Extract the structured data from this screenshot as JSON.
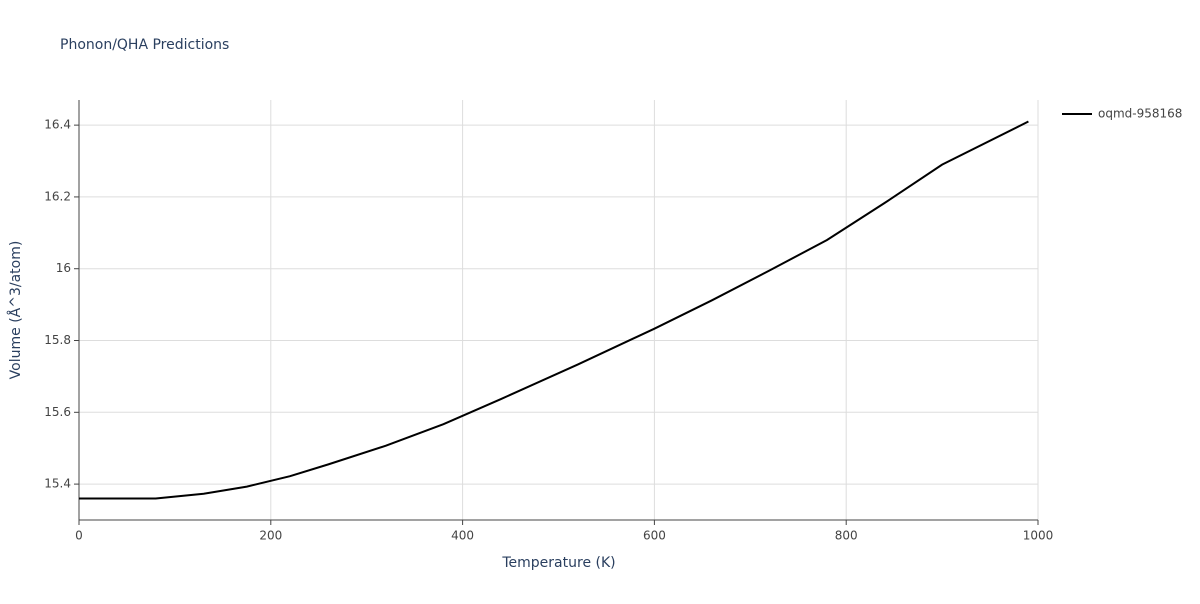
{
  "chart_data": {
    "type": "line",
    "title": "Phonon/QHA Predictions",
    "x_label": "Temperature (K)",
    "y_label": "Volume (Å^3/atom)",
    "x": [
      0,
      80,
      130,
      175,
      220,
      260,
      320,
      380,
      440,
      520,
      600,
      660,
      720,
      780,
      840,
      900,
      990
    ],
    "series": [
      {
        "name": "oqmd-958168",
        "color": "#000000",
        "values": [
          15.36,
          15.36,
          15.373,
          15.393,
          15.422,
          15.455,
          15.507,
          15.567,
          15.637,
          15.733,
          15.833,
          15.912,
          15.995,
          16.08,
          16.183,
          16.29,
          16.41
        ]
      }
    ],
    "xlim": [
      0,
      1000
    ],
    "xticks": [
      0,
      200,
      400,
      600,
      800,
      1000
    ],
    "ylim": [
      15.3,
      16.47
    ],
    "yticks": [
      15.4,
      15.6,
      15.8,
      16,
      16.2,
      16.4
    ],
    "grid": true,
    "legend": "top-right"
  }
}
